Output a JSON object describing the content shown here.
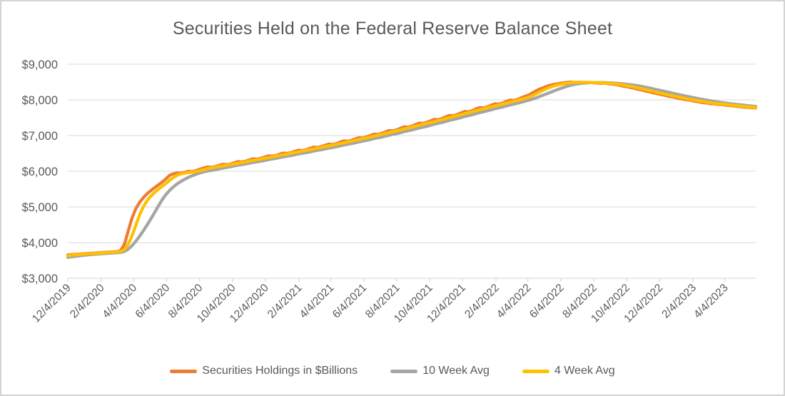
{
  "chart_data": {
    "type": "line",
    "title": "Securities Held on the Federal Reserve Balance Sheet",
    "frequency": "weekly",
    "grid": "horizontal",
    "legend_position": "bottom",
    "x_axis": {
      "start_date": "12/4/2019",
      "end_date": "5/31/2023",
      "tick_interval": "2 months",
      "tick_labels": [
        "12/4/2019",
        "2/4/2020",
        "4/4/2020",
        "6/4/2020",
        "8/4/2020",
        "10/4/2020",
        "12/4/2020",
        "2/4/2021",
        "4/4/2021",
        "6/4/2021",
        "8/4/2021",
        "10/4/2021",
        "12/4/2021",
        "2/4/2022",
        "4/4/2022",
        "6/4/2022",
        "8/4/2022",
        "10/4/2022",
        "12/4/2022",
        "2/4/2023",
        "4/4/2023"
      ]
    },
    "y_axis": {
      "min": 3000,
      "max": 9000,
      "step": 1000,
      "tick_labels": [
        "$3,000",
        "$4,000",
        "$5,000",
        "$6,000",
        "$7,000",
        "$8,000",
        "$9,000"
      ]
    },
    "series": [
      {
        "name": "Securities Holdings in $Billions",
        "color": "#ED7D31",
        "values": [
          3655,
          3663,
          3670,
          3678,
          3685,
          3692,
          3700,
          3707,
          3714,
          3721,
          3728,
          3734,
          3740,
          3746,
          3780,
          3960,
          4330,
          4690,
          4950,
          5130,
          5260,
          5370,
          5460,
          5540,
          5620,
          5700,
          5790,
          5890,
          5930,
          5950,
          5945,
          5970,
          6000,
          5990,
          6020,
          6060,
          6095,
          6120,
          6110,
          6130,
          6165,
          6195,
          6185,
          6200,
          6235,
          6270,
          6260,
          6280,
          6315,
          6350,
          6340,
          6360,
          6395,
          6430,
          6425,
          6440,
          6475,
          6510,
          6500,
          6520,
          6555,
          6590,
          6580,
          6600,
          6640,
          6675,
          6665,
          6690,
          6725,
          6760,
          6750,
          6775,
          6815,
          6850,
          6840,
          6865,
          6905,
          6940,
          6930,
          6960,
          7000,
          7040,
          7030,
          7060,
          7100,
          7140,
          7130,
          7160,
          7205,
          7245,
          7235,
          7265,
          7310,
          7350,
          7340,
          7370,
          7415,
          7455,
          7445,
          7480,
          7525,
          7565,
          7555,
          7590,
          7635,
          7675,
          7665,
          7700,
          7745,
          7785,
          7775,
          7805,
          7850,
          7890,
          7880,
          7910,
          7955,
          7995,
          7985,
          8015,
          8060,
          8100,
          8140,
          8200,
          8260,
          8310,
          8350,
          8390,
          8420,
          8440,
          8460,
          8475,
          8490,
          8500,
          8495,
          8490,
          8495,
          8485,
          8490,
          8480,
          8475,
          8465,
          8470,
          8455,
          8445,
          8430,
          8410,
          8385,
          8370,
          8345,
          8325,
          8295,
          8275,
          8245,
          8225,
          8195,
          8175,
          8150,
          8130,
          8100,
          8085,
          8060,
          8040,
          8015,
          8000,
          7985,
          7960,
          7945,
          7925,
          7915,
          7895,
          7890,
          7875,
          7870,
          7855,
          7845,
          7835,
          7820,
          7810,
          7795,
          7790,
          7780,
          7775
        ]
      },
      {
        "name": "10 Week Avg",
        "color": "#A5A5A5",
        "derived": {
          "type": "trailing_average",
          "window": 10,
          "of": "Securities Holdings in $Billions"
        }
      },
      {
        "name": "4 Week Avg",
        "color": "#FFC000",
        "derived": {
          "type": "trailing_average",
          "window": 4,
          "of": "Securities Holdings in $Billions"
        }
      }
    ],
    "pre_window_values": [
      3520,
      3535,
      3550,
      3565,
      3580,
      3595,
      3610,
      3625,
      3640
    ],
    "colors": {
      "gridline": "#D9D9D9",
      "axis_line": "#D9D9D9",
      "axis_text": "#595959",
      "title_text": "#595959",
      "background": "#FFFFFF"
    }
  }
}
